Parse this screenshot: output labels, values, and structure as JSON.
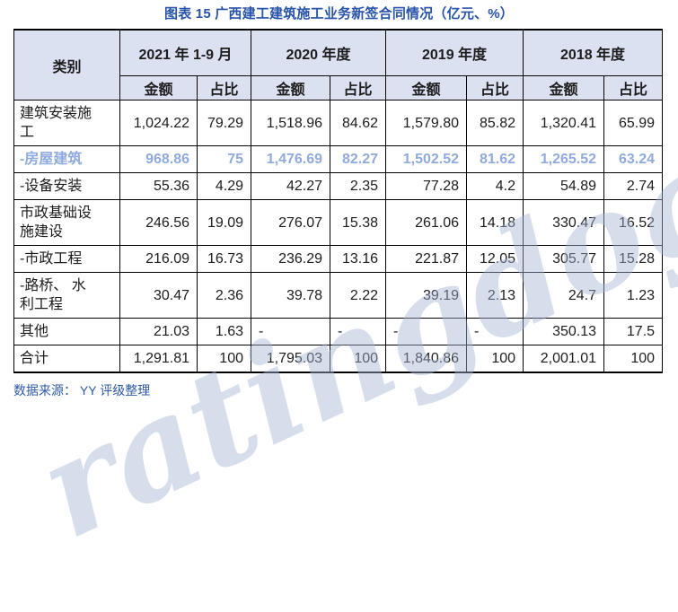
{
  "title": "图表 15 广西建工建筑施工业务新签合同情况（亿元、%）",
  "table": {
    "category_header": "类别",
    "period_headers": [
      "2021 年 1-9 月",
      "2020 年度",
      "2019 年度",
      "2018 年度"
    ],
    "sub_headers": {
      "amount": "金额",
      "share": "占比"
    },
    "rows": [
      {
        "label": "建筑安装施工",
        "highlight": false,
        "values": [
          "1,024.22",
          "79.29",
          "1,518.96",
          "84.62",
          "1,579.80",
          "85.82",
          "1,320.41",
          "65.99"
        ]
      },
      {
        "label": "-房屋建筑",
        "highlight": true,
        "values": [
          "968.86",
          "75",
          "1,476.69",
          "82.27",
          "1,502.52",
          "81.62",
          "1,265.52",
          "63.24"
        ]
      },
      {
        "label": "-设备安装",
        "highlight": false,
        "values": [
          "55.36",
          "4.29",
          "42.27",
          "2.35",
          "77.28",
          "4.2",
          "54.89",
          "2.74"
        ]
      },
      {
        "label": "市政基础设施建设",
        "highlight": false,
        "values": [
          "246.56",
          "19.09",
          "276.07",
          "15.38",
          "261.06",
          "14.18",
          "330.47",
          "16.52"
        ]
      },
      {
        "label": "-市政工程",
        "highlight": false,
        "values": [
          "216.09",
          "16.73",
          "236.29",
          "13.16",
          "221.87",
          "12.05",
          "305.77",
          "15.28"
        ]
      },
      {
        "label": "-路桥、 水利工程",
        "highlight": false,
        "values": [
          "30.47",
          "2.36",
          "39.78",
          "2.22",
          "39.19",
          "2.13",
          "24.7",
          "1.23"
        ]
      },
      {
        "label": "其他",
        "highlight": false,
        "values": [
          "21.03",
          "1.63",
          "-",
          "-",
          "-",
          "-",
          "350.13",
          "17.5"
        ]
      },
      {
        "label": "合计",
        "highlight": false,
        "values": [
          "1,291.81",
          "100",
          "1,795.03",
          "100",
          "1,840.86",
          "100",
          "2,001.01",
          "100"
        ]
      }
    ]
  },
  "source_note": "数据来源： YY 评级整理",
  "watermark": "ratingdog",
  "colors": {
    "title_blue": "#2753A8",
    "header_bg": "#DCE1F2",
    "highlight_row": "#8FAADC",
    "source_blue": "#2E5AA6",
    "watermark": "#A5B4D2"
  }
}
